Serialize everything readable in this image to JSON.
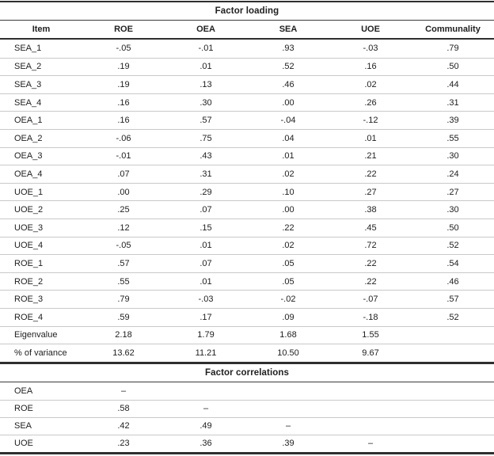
{
  "colors": {
    "text": "#212121",
    "heavy_rule": "#2f2f2f",
    "row_divider": "#c9c9c9",
    "background": "#ffffff"
  },
  "loading": {
    "title": "Factor loading",
    "columns": [
      "Item",
      "ROE",
      "OEA",
      "SEA",
      "UOE",
      "Communality"
    ],
    "rows": [
      {
        "item": "SEA_1",
        "values": [
          "-.05",
          "-.01",
          ".93",
          "-.03",
          ".79"
        ]
      },
      {
        "item": "SEA_2",
        "values": [
          ".19",
          ".01",
          ".52",
          ".16",
          ".50"
        ]
      },
      {
        "item": "SEA_3",
        "values": [
          ".19",
          ".13",
          ".46",
          ".02",
          ".44"
        ]
      },
      {
        "item": "SEA_4",
        "values": [
          ".16",
          ".30",
          ".00",
          ".26",
          ".31"
        ]
      },
      {
        "item": "OEA_1",
        "values": [
          ".16",
          ".57",
          "-.04",
          "-.12",
          ".39"
        ]
      },
      {
        "item": "OEA_2",
        "values": [
          "-.06",
          ".75",
          ".04",
          ".01",
          ".55"
        ]
      },
      {
        "item": "OEA_3",
        "values": [
          "-.01",
          ".43",
          ".01",
          ".21",
          ".30"
        ]
      },
      {
        "item": "OEA_4",
        "values": [
          ".07",
          ".31",
          ".02",
          ".22",
          ".24"
        ]
      },
      {
        "item": "UOE_1",
        "values": [
          ".00",
          ".29",
          ".10",
          ".27",
          ".27"
        ]
      },
      {
        "item": "UOE_2",
        "values": [
          ".25",
          ".07",
          ".00",
          ".38",
          ".30"
        ]
      },
      {
        "item": "UOE_3",
        "values": [
          ".12",
          ".15",
          ".22",
          ".45",
          ".50"
        ]
      },
      {
        "item": "UOE_4",
        "values": [
          "-.05",
          ".01",
          ".02",
          ".72",
          ".52"
        ]
      },
      {
        "item": "ROE_1",
        "values": [
          ".57",
          ".07",
          ".05",
          ".22",
          ".54"
        ]
      },
      {
        "item": "ROE_2",
        "values": [
          ".55",
          ".01",
          ".05",
          ".22",
          ".46"
        ]
      },
      {
        "item": "ROE_3",
        "values": [
          ".79",
          "-.03",
          "-.02",
          "-.07",
          ".57"
        ]
      },
      {
        "item": "ROE_4",
        "values": [
          ".59",
          ".17",
          ".09",
          "-.18",
          ".52"
        ]
      },
      {
        "item": "Eigenvalue",
        "values": [
          "2.18",
          "1.79",
          "1.68",
          "1.55",
          ""
        ]
      },
      {
        "item": "% of variance",
        "values": [
          "13.62",
          "11.21",
          "10.50",
          "9.67",
          ""
        ]
      }
    ]
  },
  "correlations": {
    "title": "Factor correlations",
    "rows": [
      {
        "item": "OEA",
        "values": [
          "–",
          "",
          "",
          "",
          ""
        ]
      },
      {
        "item": "ROE",
        "values": [
          ".58",
          "–",
          "",
          "",
          ""
        ]
      },
      {
        "item": "SEA",
        "values": [
          ".42",
          ".49",
          "–",
          "",
          ""
        ]
      },
      {
        "item": "UOE",
        "values": [
          ".23",
          ".36",
          ".39",
          "–",
          ""
        ]
      }
    ]
  }
}
